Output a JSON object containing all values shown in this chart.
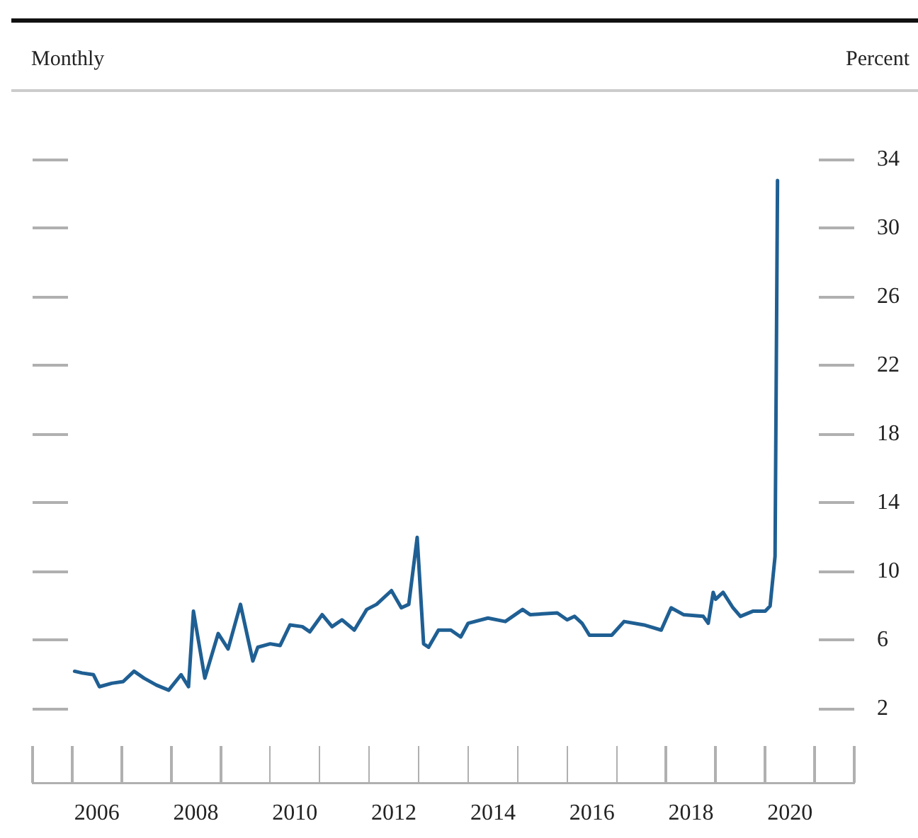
{
  "chart_data": {
    "type": "line",
    "ylabel": "Percent",
    "annotations": [
      "Monthly"
    ],
    "x": [
      2006.05,
      2006.2,
      2006.43,
      2006.55,
      2006.8,
      2007.03,
      2007.25,
      2007.45,
      2007.7,
      2007.95,
      2008.2,
      2008.35,
      2008.45,
      2008.68,
      2008.95,
      2009.15,
      2009.4,
      2009.65,
      2009.75,
      2010.0,
      2010.2,
      2010.4,
      2010.65,
      2010.8,
      2011.05,
      2011.25,
      2011.45,
      2011.7,
      2011.95,
      2012.15,
      2012.45,
      2012.65,
      2012.8,
      2012.97,
      2013.1,
      2013.2,
      2013.4,
      2013.65,
      2013.85,
      2014.0,
      2014.4,
      2014.75,
      2015.1,
      2015.25,
      2015.8,
      2016.0,
      2016.15,
      2016.3,
      2016.45,
      2016.9,
      2017.15,
      2017.55,
      2017.9,
      2018.1,
      2018.35,
      2018.75,
      2018.85,
      2018.95,
      2019.0,
      2019.15,
      2019.35,
      2019.5,
      2019.75,
      2020.0,
      2020.1,
      2020.2,
      2020.25
    ],
    "series": [
      {
        "color": "#1f5f93",
        "values": [
          4.2,
          4.1,
          4.0,
          3.3,
          3.5,
          3.6,
          4.2,
          3.8,
          3.4,
          3.1,
          4.0,
          3.3,
          7.7,
          3.8,
          6.4,
          5.5,
          8.1,
          4.8,
          5.6,
          5.8,
          5.7,
          6.9,
          6.8,
          6.5,
          7.5,
          6.8,
          7.2,
          6.6,
          7.8,
          8.1,
          8.9,
          7.9,
          8.1,
          12.0,
          5.8,
          5.6,
          6.6,
          6.6,
          6.2,
          7.0,
          7.3,
          7.1,
          7.8,
          7.5,
          7.6,
          7.2,
          7.4,
          7.0,
          6.3,
          6.3,
          7.1,
          6.9,
          6.6,
          7.9,
          7.5,
          7.4,
          7.0,
          8.8,
          8.4,
          8.8,
          7.9,
          7.4,
          7.7,
          7.7,
          8.0,
          10.9,
          32.8
        ]
      }
    ],
    "xlim": [
      2005.2,
      2021.8
    ],
    "xticks": [
      {
        "value": 2006.5,
        "label": "2006"
      },
      {
        "value": 2008.5,
        "label": "2008"
      },
      {
        "value": 2010.5,
        "label": "2010"
      },
      {
        "value": 2012.5,
        "label": "2012"
      },
      {
        "value": 2014.5,
        "label": "2014"
      },
      {
        "value": 2016.5,
        "label": "2016"
      },
      {
        "value": 2018.5,
        "label": "2018"
      },
      {
        "value": 2020.5,
        "label": "2020"
      }
    ],
    "ylim": [
      -2.3,
      34
    ],
    "yticks": [
      2,
      6,
      10,
      14,
      18,
      22,
      26,
      30,
      34
    ],
    "marker": "none",
    "line_style": "solid",
    "legend": false
  }
}
